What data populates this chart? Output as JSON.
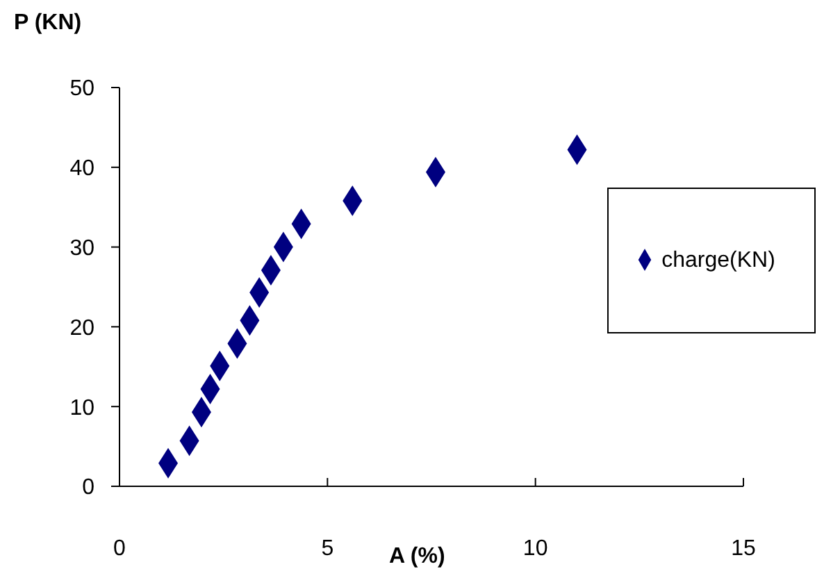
{
  "chart_data": {
    "type": "scatter",
    "xlabel": "A (%)",
    "ylabel": "P (KN)",
    "xlim": [
      0,
      15
    ],
    "xticks": [
      0,
      5,
      10,
      15
    ],
    "ylim": [
      0,
      50
    ],
    "yticks": [
      0,
      10,
      20,
      30,
      40,
      50
    ],
    "grid": false,
    "legend": "right",
    "marker": "diamond",
    "series": [
      {
        "name": "charge(KN)",
        "color": "#000080",
        "x": [
          1.17,
          1.68,
          1.97,
          2.18,
          2.41,
          2.83,
          3.13,
          3.36,
          3.64,
          3.94,
          4.37,
          5.6,
          7.6,
          11.0
        ],
        "values": [
          2.9,
          5.7,
          9.3,
          12.2,
          15.1,
          17.9,
          20.8,
          24.3,
          27.1,
          30.0,
          32.9,
          35.8,
          39.4,
          42.2
        ]
      }
    ]
  }
}
